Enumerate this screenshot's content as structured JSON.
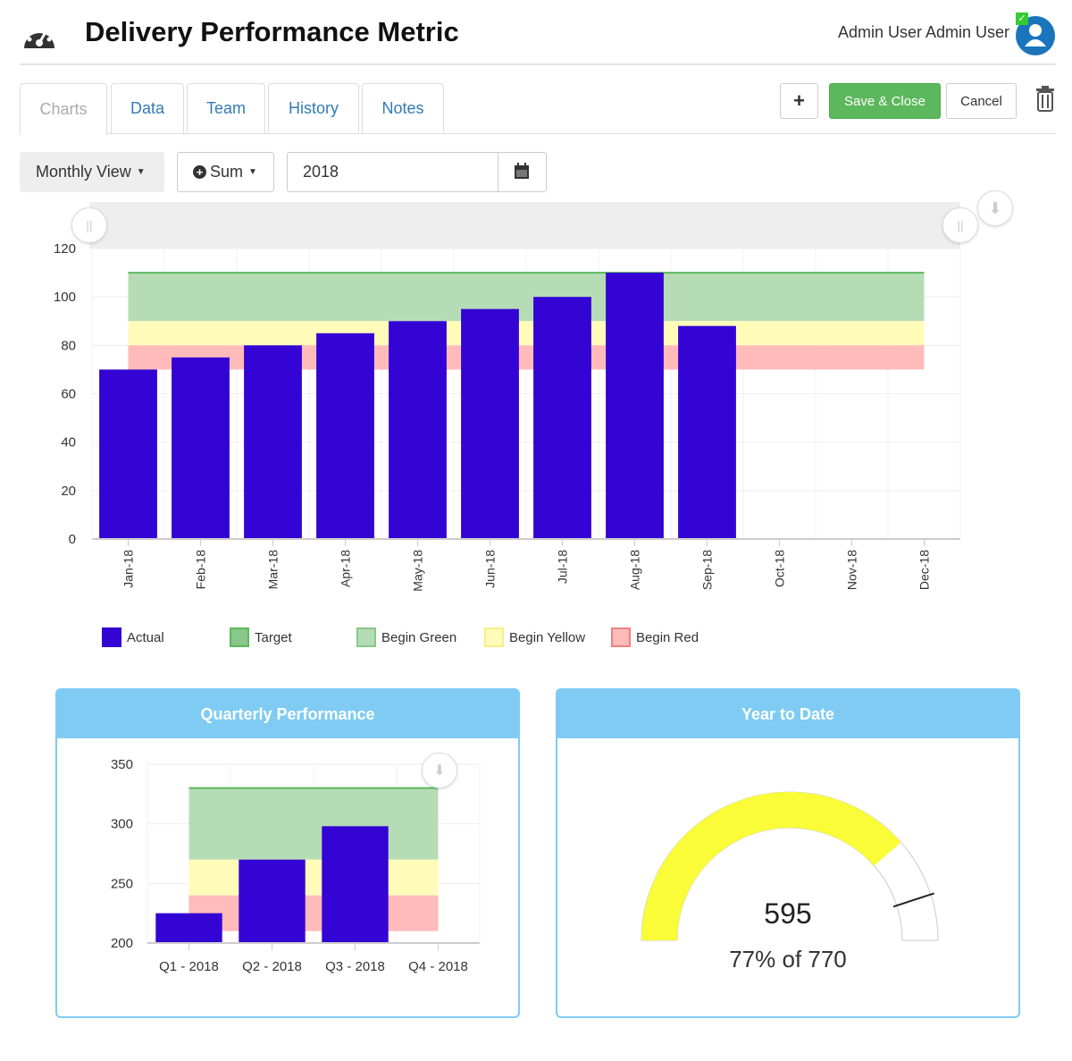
{
  "header": {
    "title": "Delivery Performance Metric",
    "icon": "dashboard-gauge-icon",
    "user": "Admin User Admin User"
  },
  "tabs": [
    {
      "label": "Charts",
      "active": true
    },
    {
      "label": "Data"
    },
    {
      "label": "Team"
    },
    {
      "label": "History"
    },
    {
      "label": "Notes"
    }
  ],
  "toolbar": {
    "add": "+",
    "save": "Save & Close",
    "cancel": "Cancel",
    "delete_icon": "trash-icon"
  },
  "controls": {
    "view": "Monthly View",
    "aggregate": "Sum",
    "year": "2018",
    "calendar_icon": "calendar-icon"
  },
  "colors": {
    "actual": "#3304d4",
    "target": "#5cb85c",
    "green": "#b6dcb6",
    "yellow": "#fffcba",
    "red": "#ffbaba",
    "panel": "#7fcbf3",
    "gauge": "#fafc38"
  },
  "chart_data": [
    {
      "type": "bar",
      "categories": [
        "Jan-18",
        "Feb-18",
        "Mar-18",
        "Apr-18",
        "May-18",
        "Jun-18",
        "Jul-18",
        "Aug-18",
        "Sep-18",
        "Oct-18",
        "Nov-18",
        "Dec-18"
      ],
      "series": [
        {
          "name": "Actual",
          "values": [
            70,
            75,
            80,
            85,
            90,
            95,
            100,
            110,
            88,
            null,
            null,
            null
          ]
        }
      ],
      "bands": {
        "Target": 110,
        "Begin Green": 90,
        "Begin Yellow": 80,
        "Begin Red": 70
      },
      "legend": [
        "Actual",
        "Target",
        "Begin Green",
        "Begin Yellow",
        "Begin Red"
      ],
      "yticks": [
        0,
        20,
        40,
        60,
        80,
        100,
        120
      ],
      "ylim": [
        0,
        120
      ],
      "grid": true,
      "legend_position": "bottom"
    },
    {
      "type": "bar",
      "title": "Quarterly Performance",
      "categories": [
        "Q1 - 2018",
        "Q2 - 2018",
        "Q3 - 2018",
        "Q4 - 2018"
      ],
      "series": [
        {
          "name": "Actual",
          "values": [
            225,
            270,
            298,
            null
          ]
        }
      ],
      "bands": {
        "Target": 330,
        "Begin Green": 270,
        "Begin Yellow": 240,
        "Begin Red": 210
      },
      "yticks": [
        200,
        250,
        300,
        350
      ],
      "ylim": [
        200,
        350
      ],
      "grid": true
    },
    {
      "type": "gauge",
      "title": "Year to Date",
      "value": "595",
      "subtitle": "77% of 770",
      "fraction": 0.77,
      "target_fraction": 0.9
    }
  ]
}
